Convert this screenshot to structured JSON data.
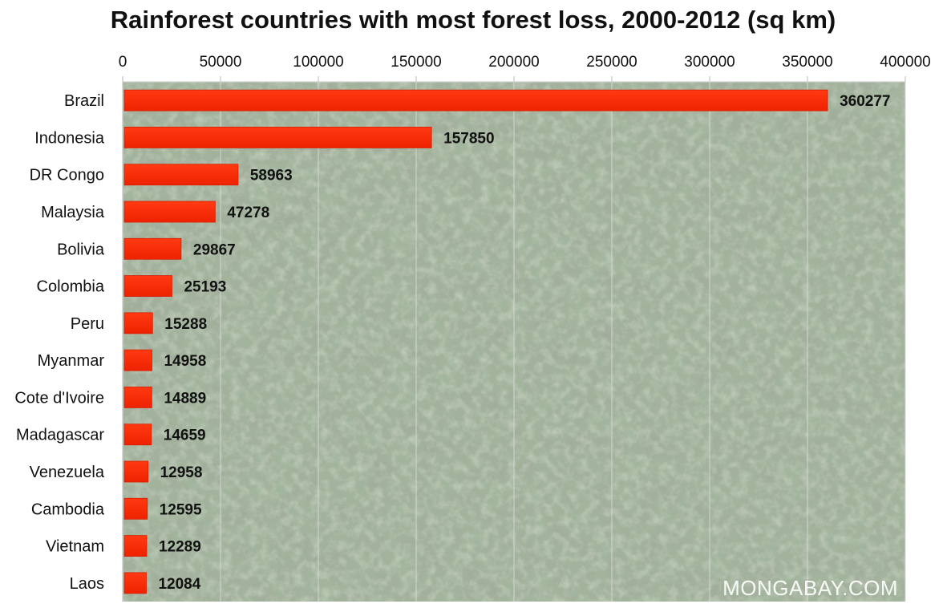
{
  "chart_data": {
    "type": "bar",
    "orientation": "horizontal",
    "title": "Rainforest countries with most forest loss, 2000-2012 (sq km)",
    "categories": [
      "Brazil",
      "Indonesia",
      "DR Congo",
      "Malaysia",
      "Bolivia",
      "Colombia",
      "Peru",
      "Myanmar",
      "Cote d'Ivoire",
      "Madagascar",
      "Venezuela",
      "Cambodia",
      "Vietnam",
      "Laos"
    ],
    "values": [
      360277,
      157850,
      58963,
      47278,
      29867,
      25193,
      15288,
      14958,
      14889,
      14659,
      12958,
      12595,
      12289,
      12084
    ],
    "value_labels": [
      "360277",
      "157850",
      "58963",
      "47278",
      "29867",
      "25193",
      "15288",
      "14958",
      "14889",
      "14659",
      "12958",
      "12595",
      "12289",
      "12084"
    ],
    "xlim": [
      0,
      400000
    ],
    "x_ticks": [
      0,
      50000,
      100000,
      150000,
      200000,
      250000,
      300000,
      350000,
      400000
    ],
    "x_tick_labels": [
      "0",
      "50000",
      "100000",
      "150000",
      "200000",
      "250000",
      "300000",
      "350000",
      "400000"
    ],
    "x_axis_position": "top",
    "grid": true,
    "legend": "none",
    "bar_color": "#ff2a00",
    "background": "aerial rainforest canopy photo"
  },
  "watermark": "MONGABAY.COM"
}
